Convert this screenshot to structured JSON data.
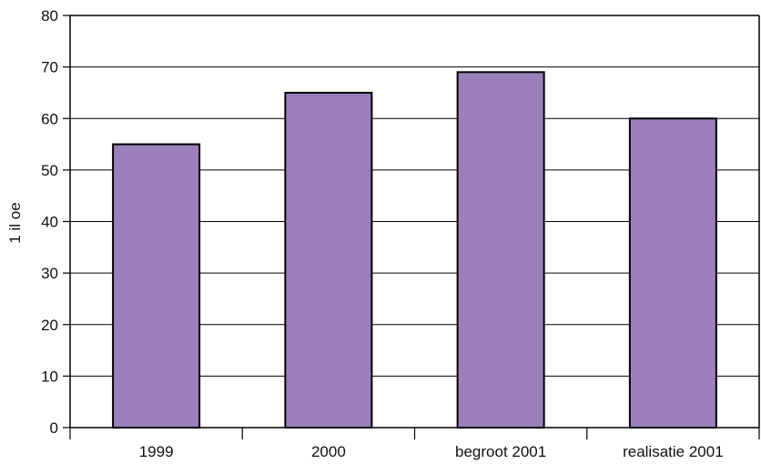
{
  "chart_data": {
    "type": "bar",
    "categories": [
      "1999",
      "2000",
      "begroot 2001",
      "realisatie 2001"
    ],
    "values": [
      55,
      65,
      69,
      60
    ],
    "ylabel": "1  il oe",
    "xlabel": "",
    "title": "",
    "ylim": [
      0,
      80
    ],
    "yticks": [
      0,
      10,
      20,
      30,
      40,
      50,
      60,
      70,
      80
    ],
    "grid": true,
    "legend": "none",
    "colors": {
      "bar": "#9b7fbb",
      "bar_edge": "#000000",
      "grid": "#000000"
    }
  }
}
